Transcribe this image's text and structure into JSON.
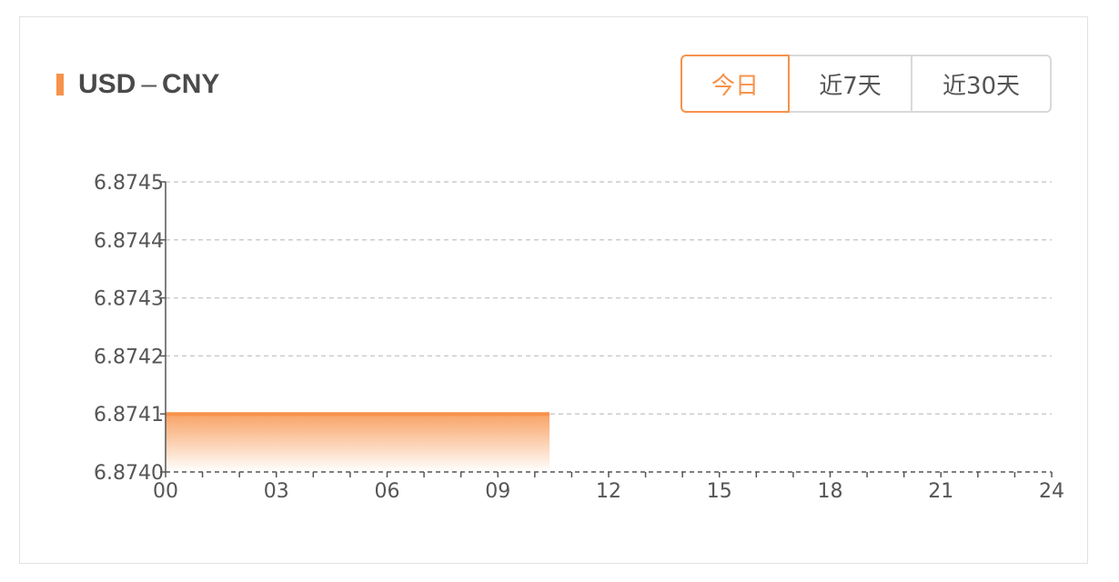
{
  "header": {
    "base": "USD",
    "separator": "–",
    "quote": "CNY"
  },
  "range_tabs": [
    {
      "label": "今日",
      "active": true
    },
    {
      "label": "近7天",
      "active": false
    },
    {
      "label": "近30天",
      "active": false
    }
  ],
  "colors": {
    "accent": "#f7924a",
    "grid": "#cccccc",
    "axis": "#555555"
  },
  "chart_data": {
    "type": "area",
    "x": [
      "00",
      "10.4"
    ],
    "xlim": [
      0,
      24
    ],
    "xticks": [
      "00",
      "03",
      "06",
      "09",
      "12",
      "15",
      "18",
      "21",
      "24"
    ],
    "ylim": [
      6.874,
      6.8745
    ],
    "yticks": [
      "6.8740",
      "6.8741",
      "6.8742",
      "6.8743",
      "6.8744",
      "6.8745"
    ],
    "series": [
      {
        "points": [
          [
            0,
            6.8741
          ],
          [
            10.4,
            6.8741
          ]
        ]
      }
    ],
    "grid": true,
    "legend": "none"
  }
}
